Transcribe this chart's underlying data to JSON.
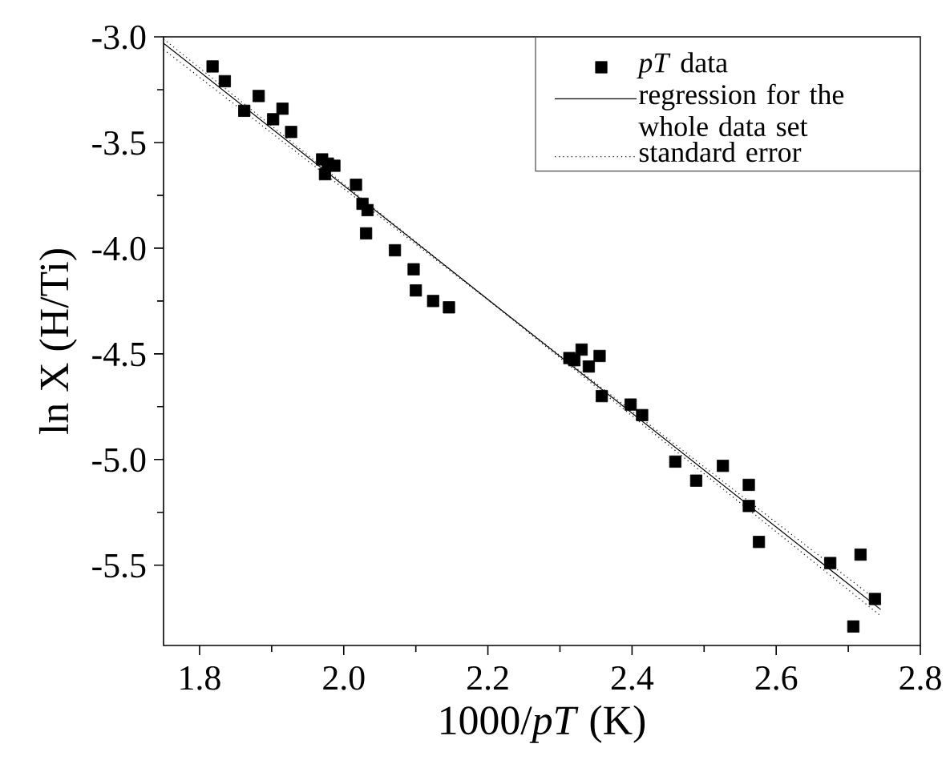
{
  "chart_data": {
    "type": "scatter",
    "xlabel": "1000/*pT* (K)",
    "ylabel": "ln X (H/Ti)",
    "xlim": [
      1.75,
      2.8
    ],
    "ylim": [
      -5.88,
      -3.0
    ],
    "xticks": [
      1.8,
      {
        "value": 2.0,
        "label": "2.0"
      },
      2.2,
      2.4,
      2.6,
      2.8
    ],
    "yticks": [
      {
        "value": -3.0,
        "label": "-3.0"
      },
      -3.5,
      {
        "value": -4.0,
        "label": "-4.0"
      },
      -4.5,
      {
        "value": -5.0,
        "label": "-5.0"
      },
      -5.5
    ],
    "legend": "top right",
    "grid": false,
    "series": [
      {
        "name": "*pT* data",
        "marker": "square",
        "color": "#000000",
        "x": [
          1.818,
          1.835,
          1.862,
          1.882,
          1.902,
          1.915,
          1.927,
          1.97,
          1.974,
          1.978,
          1.987,
          2.017,
          2.024,
          2.026,
          2.033,
          2.031,
          2.071,
          2.097,
          2.1,
          2.124,
          2.146,
          2.313,
          2.32,
          2.33,
          2.34,
          2.355,
          2.358,
          2.398,
          2.414,
          2.46,
          2.489,
          2.526,
          2.562,
          2.562,
          2.576,
          2.675,
          2.717,
          2.737,
          2.707
        ],
        "values": [
          -3.14,
          -3.21,
          -3.35,
          -3.28,
          -3.39,
          -3.34,
          -3.45,
          -3.58,
          -3.65,
          -3.6,
          -3.61,
          -3.7,
          null,
          -3.79,
          -3.82,
          -3.93,
          -4.01,
          -4.1,
          -4.2,
          -4.25,
          -4.28,
          -4.52,
          -4.53,
          -4.48,
          -4.56,
          -4.51,
          -4.7,
          -4.74,
          -4.79,
          -5.01,
          -5.1,
          -5.03,
          -5.12,
          -5.22,
          -5.39,
          -5.49,
          -5.45,
          -5.66,
          -5.79
        ]
      },
      {
        "name": "regression for the whole data set",
        "type": "line",
        "line_style": "solid",
        "color": "#000000",
        "x": [
          1.75,
          2.745
        ],
        "values": [
          -3.03,
          -5.71
        ]
      },
      {
        "name": "standard error",
        "type": "line",
        "line_style": "dotted",
        "color": "#000000",
        "x": [
          1.75,
          2.745
        ],
        "values": [
          -3.01,
          -5.74
        ]
      },
      {
        "type": "line",
        "line_style": "dotted",
        "color": "#000000",
        "x": [
          1.75,
          2.745
        ],
        "values": [
          -3.06,
          -5.68
        ]
      }
    ]
  }
}
